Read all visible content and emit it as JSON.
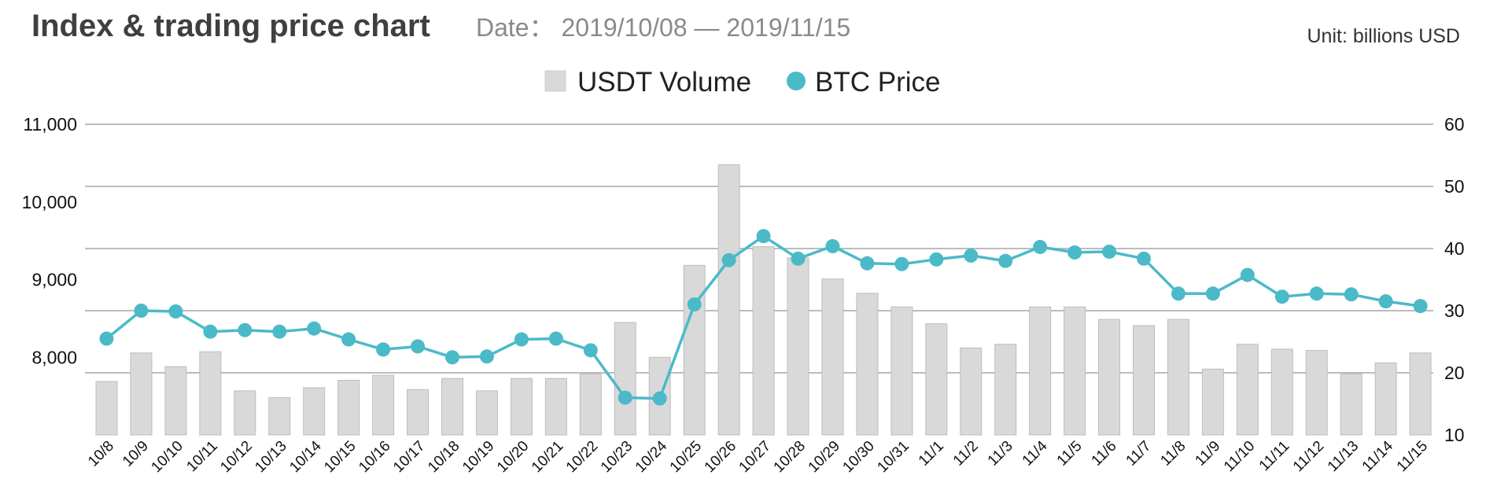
{
  "header": {
    "title": "Index & trading price chart",
    "date_range": "Date： 2019/10/08 — 2019/11/15",
    "unit": "Unit: billions USD"
  },
  "colors": {
    "bar": "#d9d9d9",
    "bar_stroke": "#bdbdbd",
    "line": "#4bbac8",
    "grid": "#bcbcbc"
  },
  "chart_data": {
    "type": "bar+line",
    "title": "Index & trading price chart",
    "categories": [
      "10/8",
      "10/9",
      "10/10",
      "10/11",
      "10/12",
      "10/13",
      "10/14",
      "10/15",
      "10/16",
      "10/17",
      "10/18",
      "10/19",
      "10/20",
      "10/21",
      "10/22",
      "10/23",
      "10/24",
      "10/25",
      "10/26",
      "10/27",
      "10/28",
      "10/29",
      "10/30",
      "10/31",
      "11/1",
      "11/2",
      "11/3",
      "11/4",
      "11/5",
      "11/6",
      "11/7",
      "11/8",
      "11/9",
      "11/10",
      "11/11",
      "11/12",
      "11/13",
      "11/14",
      "11/15"
    ],
    "series": [
      {
        "name": "USDT Volume",
        "type": "bar",
        "axis": "right",
        "values": [
          18.6,
          23.2,
          21.0,
          23.4,
          17.1,
          16.0,
          17.6,
          18.8,
          19.6,
          17.3,
          19.1,
          17.1,
          19.1,
          19.1,
          19.8,
          28.1,
          22.5,
          37.3,
          53.5,
          40.3,
          38.5,
          35.1,
          32.8,
          30.6,
          27.9,
          24.0,
          24.6,
          30.6,
          30.6,
          28.6,
          27.6,
          28.6,
          20.6,
          24.6,
          23.8,
          23.6,
          19.8,
          21.6,
          23.2
        ]
      },
      {
        "name": "BTC Price",
        "type": "line",
        "axis": "left",
        "values": [
          8240,
          8600,
          8590,
          8330,
          8350,
          8330,
          8370,
          8230,
          8100,
          8140,
          8000,
          8010,
          8230,
          8240,
          8090,
          7480,
          7470,
          8680,
          9250,
          9560,
          9270,
          9430,
          9210,
          9200,
          9260,
          9310,
          9240,
          9420,
          9350,
          9360,
          9270,
          8820,
          8820,
          9060,
          8780,
          8820,
          8810,
          8720,
          8660
        ]
      }
    ],
    "y_left": {
      "min": 7000,
      "max": 11000,
      "ticks": [
        8000,
        9000,
        10000,
        11000
      ],
      "tick_labels": [
        "8,000",
        "9,000",
        "10,000",
        "11,000"
      ]
    },
    "y_right": {
      "min": 10,
      "max": 60,
      "ticks": [
        10,
        20,
        30,
        40,
        50,
        60
      ],
      "tick_labels": [
        "10",
        "20",
        "30",
        "40",
        "50",
        "60"
      ]
    },
    "legend": {
      "position": "top-center",
      "entries": [
        "USDT Volume",
        "BTC Price"
      ]
    },
    "grid": true
  }
}
